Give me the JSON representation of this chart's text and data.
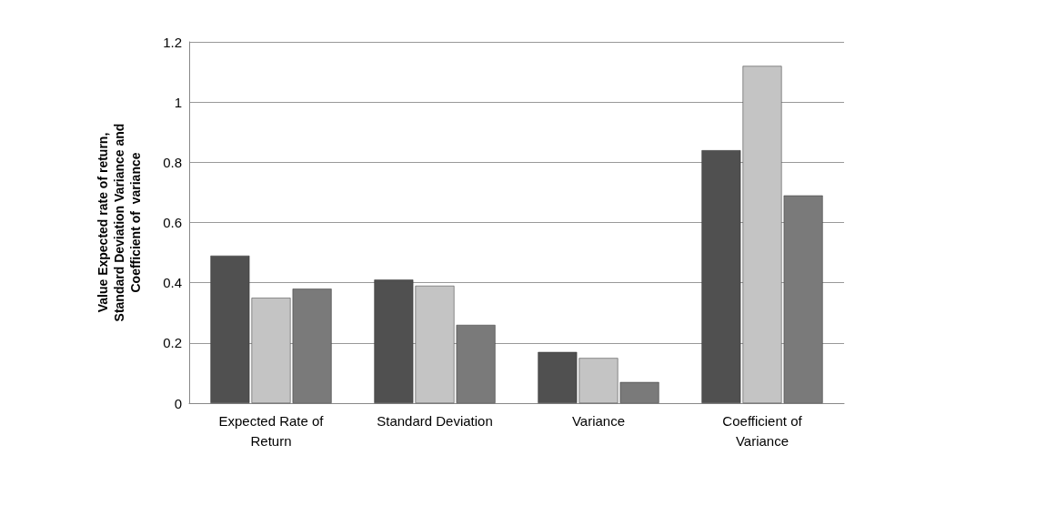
{
  "chart_data": {
    "type": "bar",
    "ylabel": "Value Expected rate of return, Standard Deviation Variance and Coefficient of  variance",
    "categories": [
      "Expected Rate of Return",
      "Standard Deviation",
      "Variance",
      "Coefficient of Variance"
    ],
    "series": [
      {
        "color": "#505050",
        "values": [
          0.49,
          0.41,
          0.17,
          0.84
        ]
      },
      {
        "color": "#c4c4c4",
        "values": [
          0.35,
          0.39,
          0.15,
          1.12
        ]
      },
      {
        "color": "#7a7a7a",
        "values": [
          0.38,
          0.26,
          0.07,
          0.69
        ]
      }
    ],
    "ylim": [
      0,
      1.2
    ],
    "yticks": [
      0,
      0.2,
      0.4,
      0.6,
      0.8,
      1,
      1.2
    ],
    "grid": "y"
  }
}
